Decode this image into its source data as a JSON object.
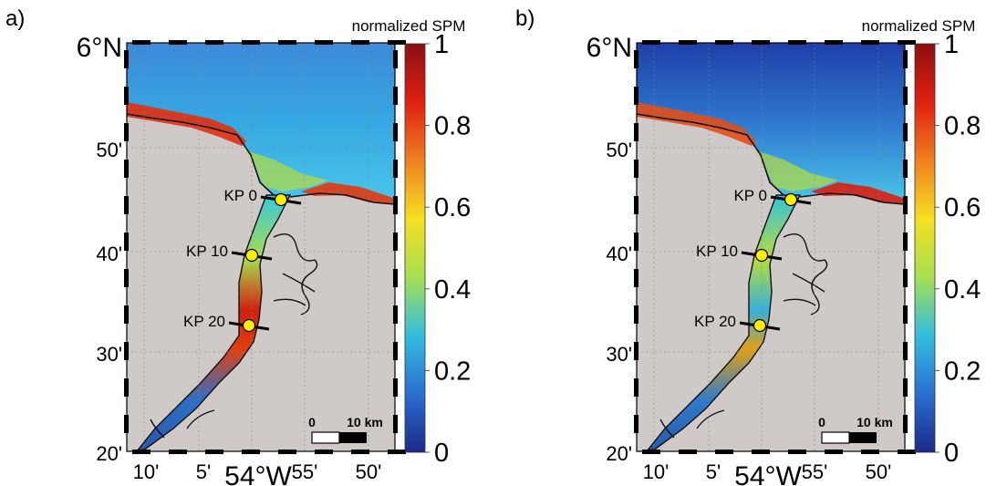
{
  "panels": [
    {
      "label": "a)",
      "colorbar": {
        "title": "normalized SPM",
        "ticks": [
          "1",
          "0.8",
          "0.6",
          "0.4",
          "0.2",
          "0"
        ]
      },
      "lat_labels": [
        "6°N",
        "50'",
        "40'",
        "30'",
        "20'"
      ],
      "lon_labels": [
        "10'",
        "5'",
        "54°W",
        "55'",
        "50'"
      ],
      "points": [
        "KP 0",
        "KP 10",
        "KP 20"
      ],
      "scalebar": {
        "start": "0",
        "end": "10 km"
      }
    },
    {
      "label": "b)",
      "colorbar": {
        "title": "normalized SPM",
        "ticks": [
          "1",
          "0.8",
          "0.6",
          "0.4",
          "0.2",
          "0"
        ]
      },
      "lat_labels": [
        "6°N",
        "50'",
        "40'",
        "30'",
        "20'"
      ],
      "lon_labels": [
        "10'",
        "5'",
        "54°W",
        "55'",
        "50'"
      ],
      "points": [
        "KP 0",
        "KP 10",
        "KP 20"
      ],
      "scalebar": {
        "start": "0",
        "end": "10 km"
      }
    }
  ],
  "colors": {
    "land": "#cfc9c8",
    "ocean": "#2a64b8",
    "colormap": [
      "#1a2a8a",
      "#2a6fd0",
      "#33bde0",
      "#a8e050",
      "#f5e020",
      "#f08020",
      "#e02010",
      "#8a1010"
    ],
    "marker": "#ffee00"
  }
}
